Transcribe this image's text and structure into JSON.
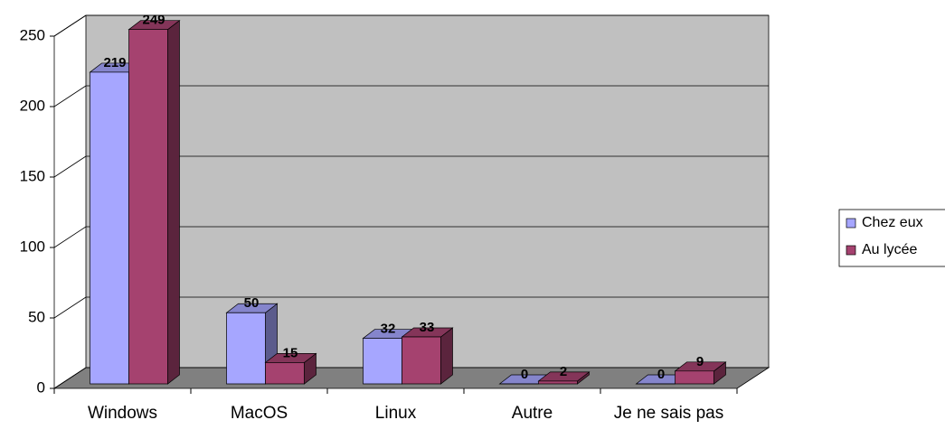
{
  "chart_data": {
    "type": "bar",
    "categories": [
      "Windows",
      "MacOS",
      "Linux",
      "Autre",
      "Je ne sais pas"
    ],
    "series": [
      {
        "name": "Chez eux",
        "color": "#a6a6ff",
        "values": [
          219,
          50,
          32,
          0,
          0
        ]
      },
      {
        "name": "Au lycée",
        "color": "#a5426f",
        "values": [
          249,
          15,
          33,
          2,
          9
        ]
      }
    ],
    "ylim": [
      0,
      250
    ],
    "yticks": [
      0,
      50,
      100,
      150,
      200,
      250
    ],
    "grid": true,
    "legend": "right"
  }
}
